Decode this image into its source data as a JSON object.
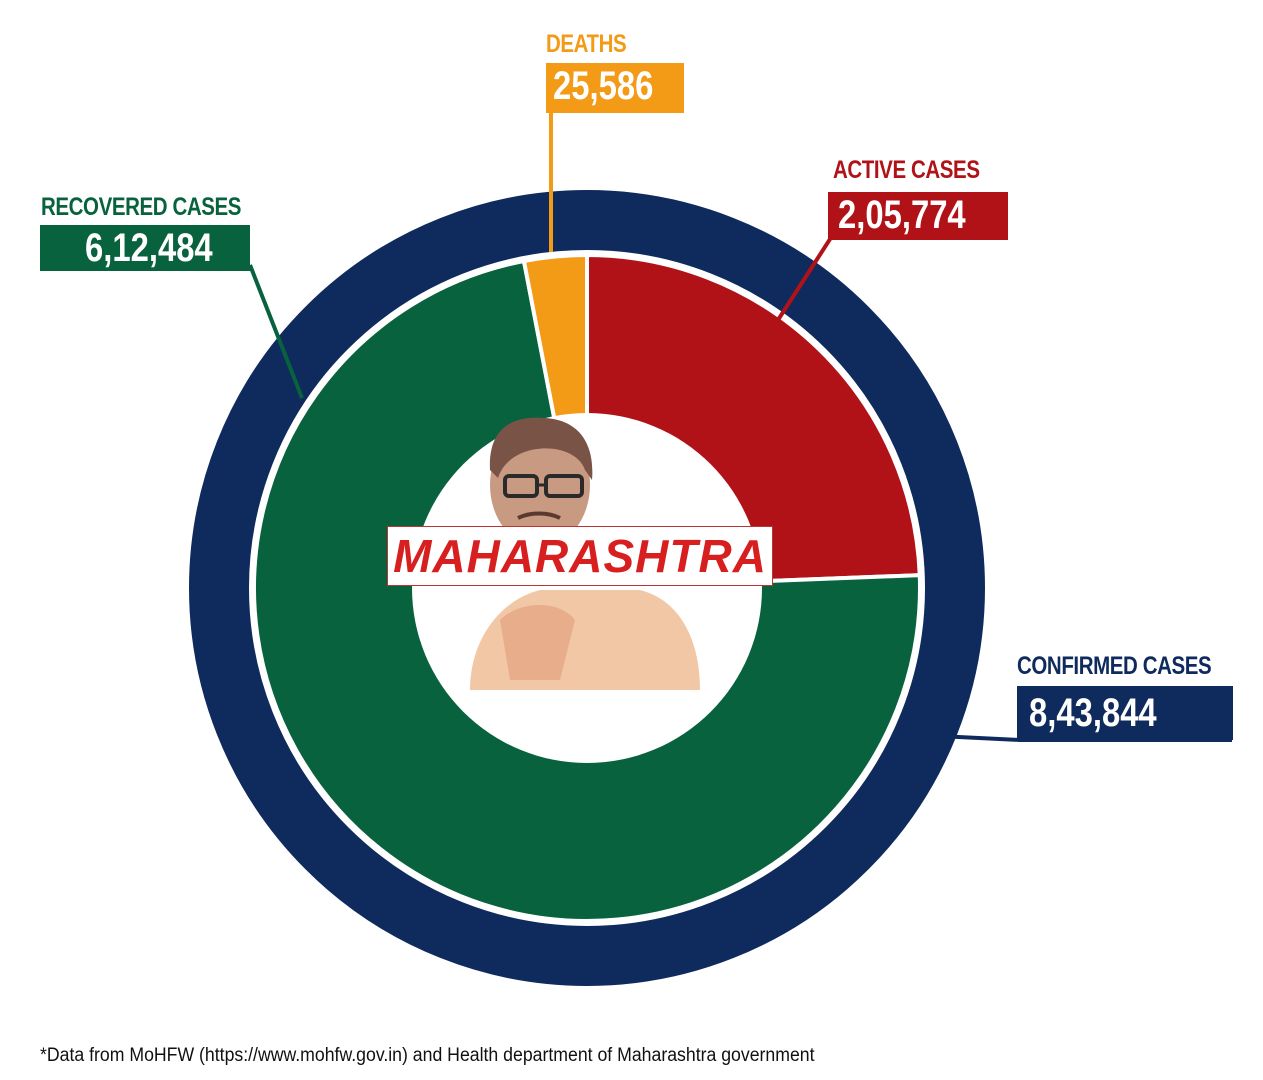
{
  "chart_data": {
    "type": "pie",
    "subtype": "donut-with-outer-ring",
    "title": "MAHARASHTRA",
    "outer_ring": {
      "label": "CONFIRMED CASES",
      "value": 843844,
      "display": "8,43,844",
      "color": "#0f2a5c"
    },
    "slices": [
      {
        "label": "ACTIVE CASES",
        "value": 205774,
        "display": "2,05,774",
        "color": "#b01218"
      },
      {
        "label": "RECOVERED CASES",
        "value": 612484,
        "display": "6,12,484",
        "color": "#08623e"
      },
      {
        "label": "DEATHS",
        "value": 25586,
        "display": "25,586",
        "color": "#f39a17"
      }
    ],
    "footnote": "*Data from MoHFW (https://www.mohfw.gov.in) and Health department of Maharashtra government"
  },
  "labels": {
    "deaths": {
      "title": "DEATHS",
      "value": "25,586"
    },
    "active": {
      "title": "ACTIVE CASES",
      "value": "2,05,774"
    },
    "recovered": {
      "title": "RECOVERED CASES",
      "value": "6,12,484"
    },
    "confirmed": {
      "title": "CONFIRMED CASES",
      "value": "8,43,844"
    }
  },
  "center": {
    "state_name": "MAHARASHTRA",
    "image": "portrait-illustration"
  },
  "colors": {
    "navy": "#0f2a5c",
    "red": "#b01218",
    "green": "#08623e",
    "orange": "#f39a17"
  },
  "footnote": "*Data from MoHFW (https://www.mohfw.gov.in) and Health department of Maharashtra government"
}
